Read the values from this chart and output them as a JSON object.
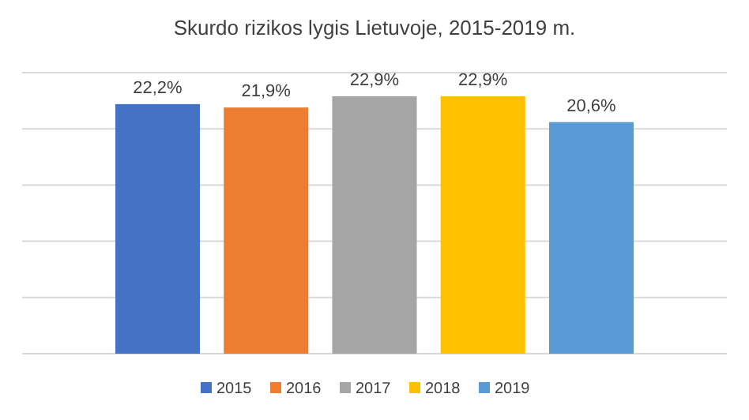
{
  "chart_data": {
    "type": "bar",
    "title": "Skurdo rizikos lygis Lietuvoje, 2015-2019 m.",
    "categories": [
      null,
      null,
      null,
      null,
      null
    ],
    "stacked": true,
    "series": [
      {
        "name": "2015",
        "color": "#4472c4",
        "values": [
          22.2,
          null,
          null,
          null,
          null
        ],
        "value_labels": [
          "22,2%",
          null,
          null,
          null,
          null
        ]
      },
      {
        "name": "2016",
        "color": "#ed7d31",
        "values": [
          null,
          21.9,
          null,
          null,
          null
        ],
        "value_labels": [
          null,
          "21,9%",
          null,
          null,
          null
        ]
      },
      {
        "name": "2017",
        "color": "#a5a5a5",
        "values": [
          null,
          null,
          22.9,
          null,
          null
        ],
        "value_labels": [
          null,
          null,
          "22,9%",
          null,
          null
        ]
      },
      {
        "name": "2018",
        "color": "#ffc000",
        "values": [
          null,
          null,
          null,
          22.9,
          null
        ],
        "value_labels": [
          null,
          null,
          null,
          "22,9%",
          null
        ]
      },
      {
        "name": "2019",
        "color": "#5b9bd5",
        "values": [
          null,
          null,
          null,
          null,
          20.6
        ],
        "value_labels": [
          null,
          null,
          null,
          null,
          "20,6%"
        ]
      }
    ],
    "ylim": [
      0,
      25
    ],
    "yticks": [
      {
        "value": 0,
        "label": null
      },
      {
        "value": 5,
        "label": null
      },
      {
        "value": 10,
        "label": null
      },
      {
        "value": 15,
        "label": null
      },
      {
        "value": 20,
        "label": null
      },
      {
        "value": 25,
        "label": null
      }
    ],
    "tick_labels": false,
    "grid": "y",
    "legend": "bottom"
  }
}
